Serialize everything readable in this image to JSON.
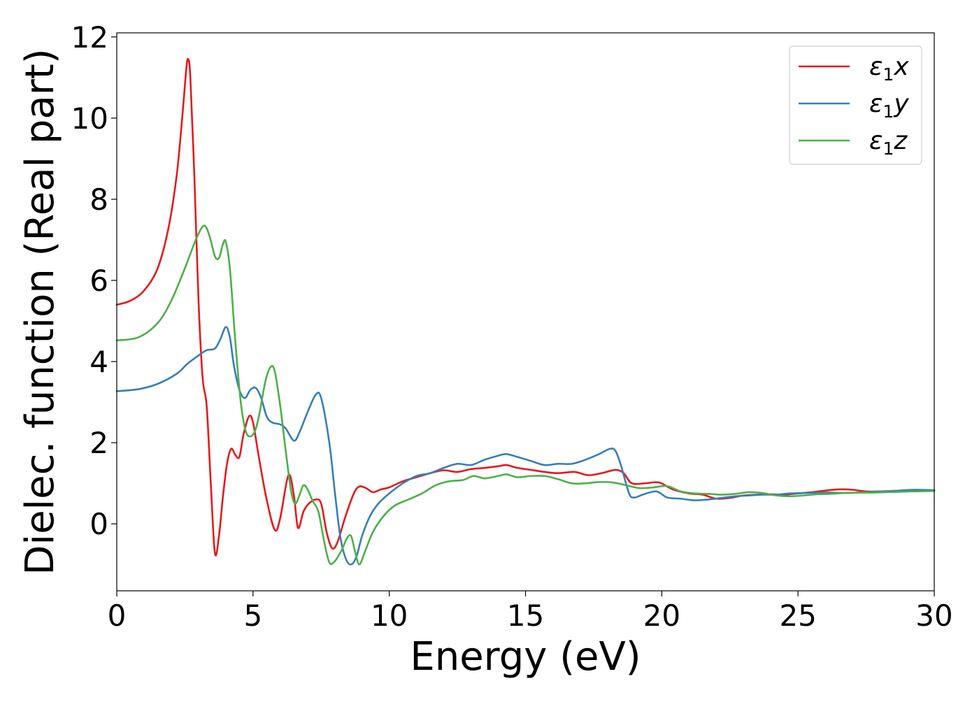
{
  "chart_data": {
    "type": "line",
    "title": "",
    "xlabel": "Energy (eV)",
    "ylabel": "Dielec. function (Real part)",
    "xlim": [
      0,
      30
    ],
    "ylim": [
      -1.65,
      12.1
    ],
    "xticks": [
      0,
      5,
      10,
      15,
      20,
      25,
      30
    ],
    "yticks": [
      0,
      2,
      4,
      6,
      8,
      10,
      12
    ],
    "grid": false,
    "legend_position": "top-right",
    "series": [
      {
        "name_base": "ε",
        "name_sub": "1",
        "name_suffix": "x",
        "color": "#e41a1c",
        "points": [
          [
            0.0,
            5.4
          ],
          [
            0.5,
            5.5
          ],
          [
            1.0,
            5.75
          ],
          [
            1.5,
            6.3
          ],
          [
            1.9,
            7.3
          ],
          [
            2.2,
            8.6
          ],
          [
            2.4,
            10.0
          ],
          [
            2.55,
            11.2
          ],
          [
            2.62,
            11.45
          ],
          [
            2.7,
            11.0
          ],
          [
            2.85,
            8.5
          ],
          [
            3.0,
            5.5
          ],
          [
            3.15,
            3.6
          ],
          [
            3.3,
            2.9
          ],
          [
            3.45,
            1.0
          ],
          [
            3.6,
            -0.72
          ],
          [
            3.75,
            -0.3
          ],
          [
            3.9,
            0.7
          ],
          [
            4.05,
            1.5
          ],
          [
            4.2,
            1.85
          ],
          [
            4.35,
            1.7
          ],
          [
            4.5,
            1.65
          ],
          [
            4.65,
            2.2
          ],
          [
            4.85,
            2.65
          ],
          [
            5.0,
            2.5
          ],
          [
            5.2,
            1.7
          ],
          [
            5.5,
            0.6
          ],
          [
            5.8,
            -0.15
          ],
          [
            6.0,
            0.15
          ],
          [
            6.3,
            1.2
          ],
          [
            6.5,
            0.7
          ],
          [
            6.65,
            -0.1
          ],
          [
            6.85,
            0.3
          ],
          [
            7.05,
            0.5
          ],
          [
            7.3,
            0.6
          ],
          [
            7.5,
            0.5
          ],
          [
            7.7,
            -0.2
          ],
          [
            7.9,
            -0.6
          ],
          [
            8.1,
            -0.45
          ],
          [
            8.4,
            0.2
          ],
          [
            8.7,
            0.75
          ],
          [
            8.9,
            0.92
          ],
          [
            9.15,
            0.88
          ],
          [
            9.4,
            0.78
          ],
          [
            9.7,
            0.85
          ],
          [
            10.0,
            0.9
          ],
          [
            10.5,
            1.05
          ],
          [
            11.0,
            1.15
          ],
          [
            11.5,
            1.25
          ],
          [
            12.0,
            1.32
          ],
          [
            12.5,
            1.28
          ],
          [
            13.0,
            1.35
          ],
          [
            13.5,
            1.38
          ],
          [
            14.0,
            1.42
          ],
          [
            14.3,
            1.45
          ],
          [
            14.7,
            1.38
          ],
          [
            15.2,
            1.33
          ],
          [
            15.7,
            1.28
          ],
          [
            16.2,
            1.25
          ],
          [
            16.8,
            1.28
          ],
          [
            17.3,
            1.2
          ],
          [
            17.8,
            1.25
          ],
          [
            18.3,
            1.33
          ],
          [
            18.6,
            1.25
          ],
          [
            18.9,
            1.0
          ],
          [
            19.4,
            1.0
          ],
          [
            19.9,
            1.02
          ],
          [
            20.4,
            0.85
          ],
          [
            21.0,
            0.75
          ],
          [
            21.5,
            0.72
          ],
          [
            22.0,
            0.62
          ],
          [
            22.5,
            0.64
          ],
          [
            23.0,
            0.7
          ],
          [
            23.5,
            0.72
          ],
          [
            24.0,
            0.73
          ],
          [
            24.5,
            0.72
          ],
          [
            25.0,
            0.75
          ],
          [
            25.5,
            0.78
          ],
          [
            26.0,
            0.82
          ],
          [
            26.5,
            0.85
          ],
          [
            27.0,
            0.84
          ],
          [
            27.5,
            0.8
          ],
          [
            28.0,
            0.8
          ],
          [
            29.0,
            0.82
          ],
          [
            30.0,
            0.82
          ]
        ]
      },
      {
        "name_base": "ε",
        "name_sub": "1",
        "name_suffix": "y",
        "color": "#377eb8",
        "points": [
          [
            0.0,
            3.27
          ],
          [
            0.8,
            3.32
          ],
          [
            1.5,
            3.45
          ],
          [
            2.2,
            3.7
          ],
          [
            2.6,
            3.95
          ],
          [
            3.0,
            4.15
          ],
          [
            3.3,
            4.28
          ],
          [
            3.6,
            4.32
          ],
          [
            3.8,
            4.55
          ],
          [
            4.0,
            4.85
          ],
          [
            4.15,
            4.6
          ],
          [
            4.3,
            3.9
          ],
          [
            4.5,
            3.3
          ],
          [
            4.7,
            3.1
          ],
          [
            4.9,
            3.3
          ],
          [
            5.1,
            3.35
          ],
          [
            5.3,
            3.1
          ],
          [
            5.5,
            2.65
          ],
          [
            5.7,
            2.5
          ],
          [
            6.0,
            2.45
          ],
          [
            6.2,
            2.35
          ],
          [
            6.5,
            2.05
          ],
          [
            6.7,
            2.25
          ],
          [
            7.0,
            2.75
          ],
          [
            7.3,
            3.18
          ],
          [
            7.5,
            3.1
          ],
          [
            7.8,
            2.0
          ],
          [
            8.0,
            0.8
          ],
          [
            8.2,
            -0.3
          ],
          [
            8.4,
            -0.85
          ],
          [
            8.6,
            -1.0
          ],
          [
            8.8,
            -0.8
          ],
          [
            9.0,
            -0.3
          ],
          [
            9.3,
            0.2
          ],
          [
            9.6,
            0.5
          ],
          [
            10.0,
            0.75
          ],
          [
            10.5,
            1.0
          ],
          [
            11.0,
            1.18
          ],
          [
            11.5,
            1.25
          ],
          [
            12.0,
            1.38
          ],
          [
            12.5,
            1.48
          ],
          [
            13.0,
            1.45
          ],
          [
            13.5,
            1.58
          ],
          [
            14.0,
            1.68
          ],
          [
            14.3,
            1.72
          ],
          [
            14.7,
            1.65
          ],
          [
            15.2,
            1.55
          ],
          [
            15.7,
            1.45
          ],
          [
            16.2,
            1.48
          ],
          [
            16.7,
            1.48
          ],
          [
            17.2,
            1.58
          ],
          [
            17.7,
            1.72
          ],
          [
            18.1,
            1.85
          ],
          [
            18.3,
            1.8
          ],
          [
            18.5,
            1.45
          ],
          [
            18.8,
            0.75
          ],
          [
            19.0,
            0.65
          ],
          [
            19.3,
            0.72
          ],
          [
            19.8,
            0.8
          ],
          [
            20.2,
            0.65
          ],
          [
            20.7,
            0.62
          ],
          [
            21.2,
            0.58
          ],
          [
            21.7,
            0.6
          ],
          [
            22.2,
            0.64
          ],
          [
            22.7,
            0.68
          ],
          [
            23.2,
            0.7
          ],
          [
            23.7,
            0.72
          ],
          [
            24.2,
            0.72
          ],
          [
            24.7,
            0.75
          ],
          [
            25.2,
            0.76
          ],
          [
            25.7,
            0.77
          ],
          [
            26.2,
            0.77
          ],
          [
            26.7,
            0.76
          ],
          [
            27.2,
            0.77
          ],
          [
            27.7,
            0.79
          ],
          [
            28.2,
            0.8
          ],
          [
            28.7,
            0.82
          ],
          [
            29.2,
            0.84
          ],
          [
            30.0,
            0.83
          ]
        ]
      },
      {
        "name_base": "ε",
        "name_sub": "1",
        "name_suffix": "z",
        "color": "#4daf4a",
        "points": [
          [
            0.0,
            4.52
          ],
          [
            0.8,
            4.6
          ],
          [
            1.5,
            4.95
          ],
          [
            2.0,
            5.5
          ],
          [
            2.5,
            6.3
          ],
          [
            2.9,
            7.0
          ],
          [
            3.2,
            7.35
          ],
          [
            3.4,
            7.1
          ],
          [
            3.6,
            6.6
          ],
          [
            3.75,
            6.55
          ],
          [
            3.9,
            6.9
          ],
          [
            4.0,
            6.95
          ],
          [
            4.15,
            6.3
          ],
          [
            4.35,
            4.5
          ],
          [
            4.55,
            3.0
          ],
          [
            4.75,
            2.25
          ],
          [
            5.0,
            2.2
          ],
          [
            5.2,
            2.6
          ],
          [
            5.45,
            3.5
          ],
          [
            5.65,
            3.87
          ],
          [
            5.8,
            3.75
          ],
          [
            6.0,
            2.9
          ],
          [
            6.2,
            1.8
          ],
          [
            6.4,
            0.8
          ],
          [
            6.55,
            0.5
          ],
          [
            6.7,
            0.7
          ],
          [
            6.85,
            0.95
          ],
          [
            7.0,
            0.85
          ],
          [
            7.2,
            0.55
          ],
          [
            7.4,
            0.3
          ],
          [
            7.6,
            -0.4
          ],
          [
            7.8,
            -0.95
          ],
          [
            8.0,
            -0.92
          ],
          [
            8.25,
            -0.65
          ],
          [
            8.45,
            -0.35
          ],
          [
            8.6,
            -0.3
          ],
          [
            8.75,
            -0.7
          ],
          [
            8.9,
            -1.0
          ],
          [
            9.1,
            -0.7
          ],
          [
            9.4,
            -0.2
          ],
          [
            9.8,
            0.2
          ],
          [
            10.2,
            0.45
          ],
          [
            10.7,
            0.6
          ],
          [
            11.2,
            0.75
          ],
          [
            11.7,
            0.95
          ],
          [
            12.2,
            1.05
          ],
          [
            12.7,
            1.08
          ],
          [
            13.1,
            1.18
          ],
          [
            13.5,
            1.12
          ],
          [
            14.0,
            1.18
          ],
          [
            14.3,
            1.22
          ],
          [
            14.7,
            1.15
          ],
          [
            15.2,
            1.18
          ],
          [
            15.7,
            1.18
          ],
          [
            16.2,
            1.1
          ],
          [
            16.7,
            1.0
          ],
          [
            17.2,
            1.0
          ],
          [
            17.7,
            1.03
          ],
          [
            18.2,
            1.02
          ],
          [
            18.7,
            0.95
          ],
          [
            19.2,
            0.88
          ],
          [
            19.7,
            0.9
          ],
          [
            20.2,
            0.93
          ],
          [
            20.7,
            0.8
          ],
          [
            21.2,
            0.75
          ],
          [
            21.7,
            0.74
          ],
          [
            22.2,
            0.72
          ],
          [
            22.7,
            0.74
          ],
          [
            23.2,
            0.78
          ],
          [
            23.7,
            0.76
          ],
          [
            24.2,
            0.7
          ],
          [
            24.7,
            0.68
          ],
          [
            25.2,
            0.7
          ],
          [
            25.7,
            0.73
          ],
          [
            26.2,
            0.74
          ],
          [
            26.7,
            0.76
          ],
          [
            27.2,
            0.77
          ],
          [
            27.7,
            0.77
          ],
          [
            28.2,
            0.78
          ],
          [
            28.7,
            0.79
          ],
          [
            29.2,
            0.8
          ],
          [
            30.0,
            0.81
          ]
        ]
      }
    ]
  }
}
